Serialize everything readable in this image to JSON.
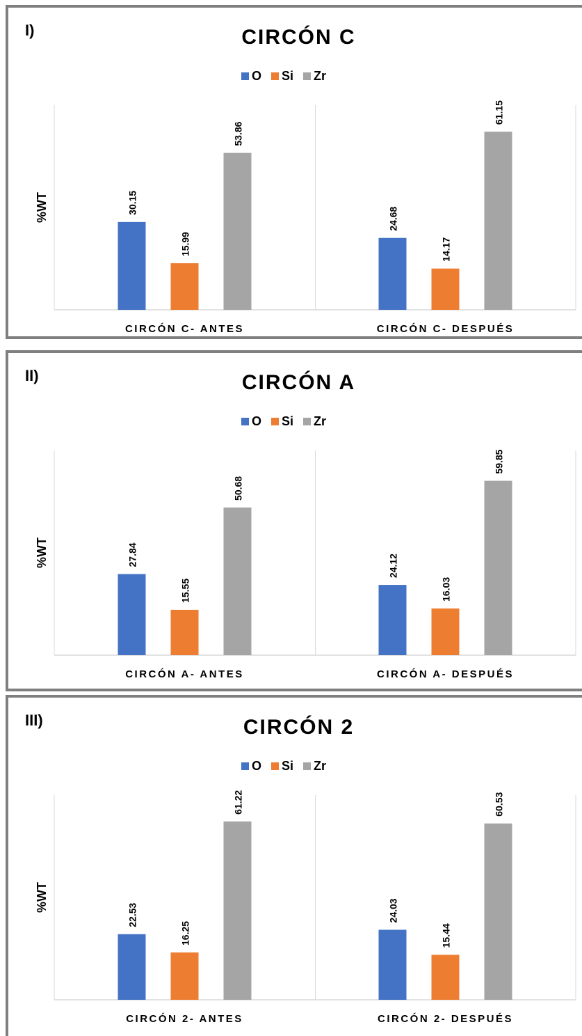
{
  "series_colors": {
    "O": "#4472c4",
    "Si": "#ed7d31",
    "Zr": "#a5a5a5"
  },
  "chart_data": [
    {
      "panel_label": "I)",
      "title": "CIRCÓN C",
      "type": "bar",
      "ylabel": "%WT",
      "categories": [
        "CIRCÓN C- ANTES",
        "CIRCÓN C- DESPUÉS"
      ],
      "series": [
        {
          "name": "O",
          "values": [
            30.15,
            24.68
          ]
        },
        {
          "name": "Si",
          "values": [
            15.99,
            14.17
          ]
        },
        {
          "name": "Zr",
          "values": [
            53.86,
            61.15
          ]
        }
      ],
      "value_labels": [
        [
          "30.15",
          "24.68"
        ],
        [
          "15.99",
          "14.17"
        ],
        [
          "53.86",
          "61.15"
        ]
      ],
      "legend": [
        "O",
        "Si",
        "Zr"
      ],
      "legend_position": "top",
      "ylim": [
        0,
        70
      ]
    },
    {
      "panel_label": "II)",
      "title": "CIRCÓN A",
      "type": "bar",
      "ylabel": "%WT",
      "categories": [
        "CIRCÓN A- ANTES",
        "CIRCÓN A- DESPUÉS"
      ],
      "series": [
        {
          "name": "O",
          "values": [
            27.84,
            24.12
          ]
        },
        {
          "name": "Si",
          "values": [
            15.55,
            16.03
          ]
        },
        {
          "name": "Zr",
          "values": [
            50.68,
            59.85
          ]
        }
      ],
      "value_labels": [
        [
          "27.84",
          "24.12"
        ],
        [
          "15.55",
          "16.03"
        ],
        [
          "50.68",
          "59.85"
        ]
      ],
      "legend": [
        "O",
        "Si",
        "Zr"
      ],
      "legend_position": "top",
      "ylim": [
        0,
        70
      ]
    },
    {
      "panel_label": "III)",
      "title": "CIRCÓN 2",
      "type": "bar",
      "ylabel": "%WT",
      "categories": [
        "CIRCÓN 2- ANTES",
        "CIRCÓN 2- DESPUÉS"
      ],
      "series": [
        {
          "name": "O",
          "values": [
            22.53,
            24.03
          ]
        },
        {
          "name": "Si",
          "values": [
            16.25,
            15.44
          ]
        },
        {
          "name": "Zr",
          "values": [
            61.22,
            60.53
          ]
        }
      ],
      "value_labels": [
        [
          "22.53",
          "24.03"
        ],
        [
          "16.25",
          "15.44"
        ],
        [
          "61.22",
          "60.53"
        ]
      ],
      "legend": [
        "O",
        "Si",
        "Zr"
      ],
      "legend_position": "top",
      "ylim": [
        0,
        70
      ]
    }
  ]
}
